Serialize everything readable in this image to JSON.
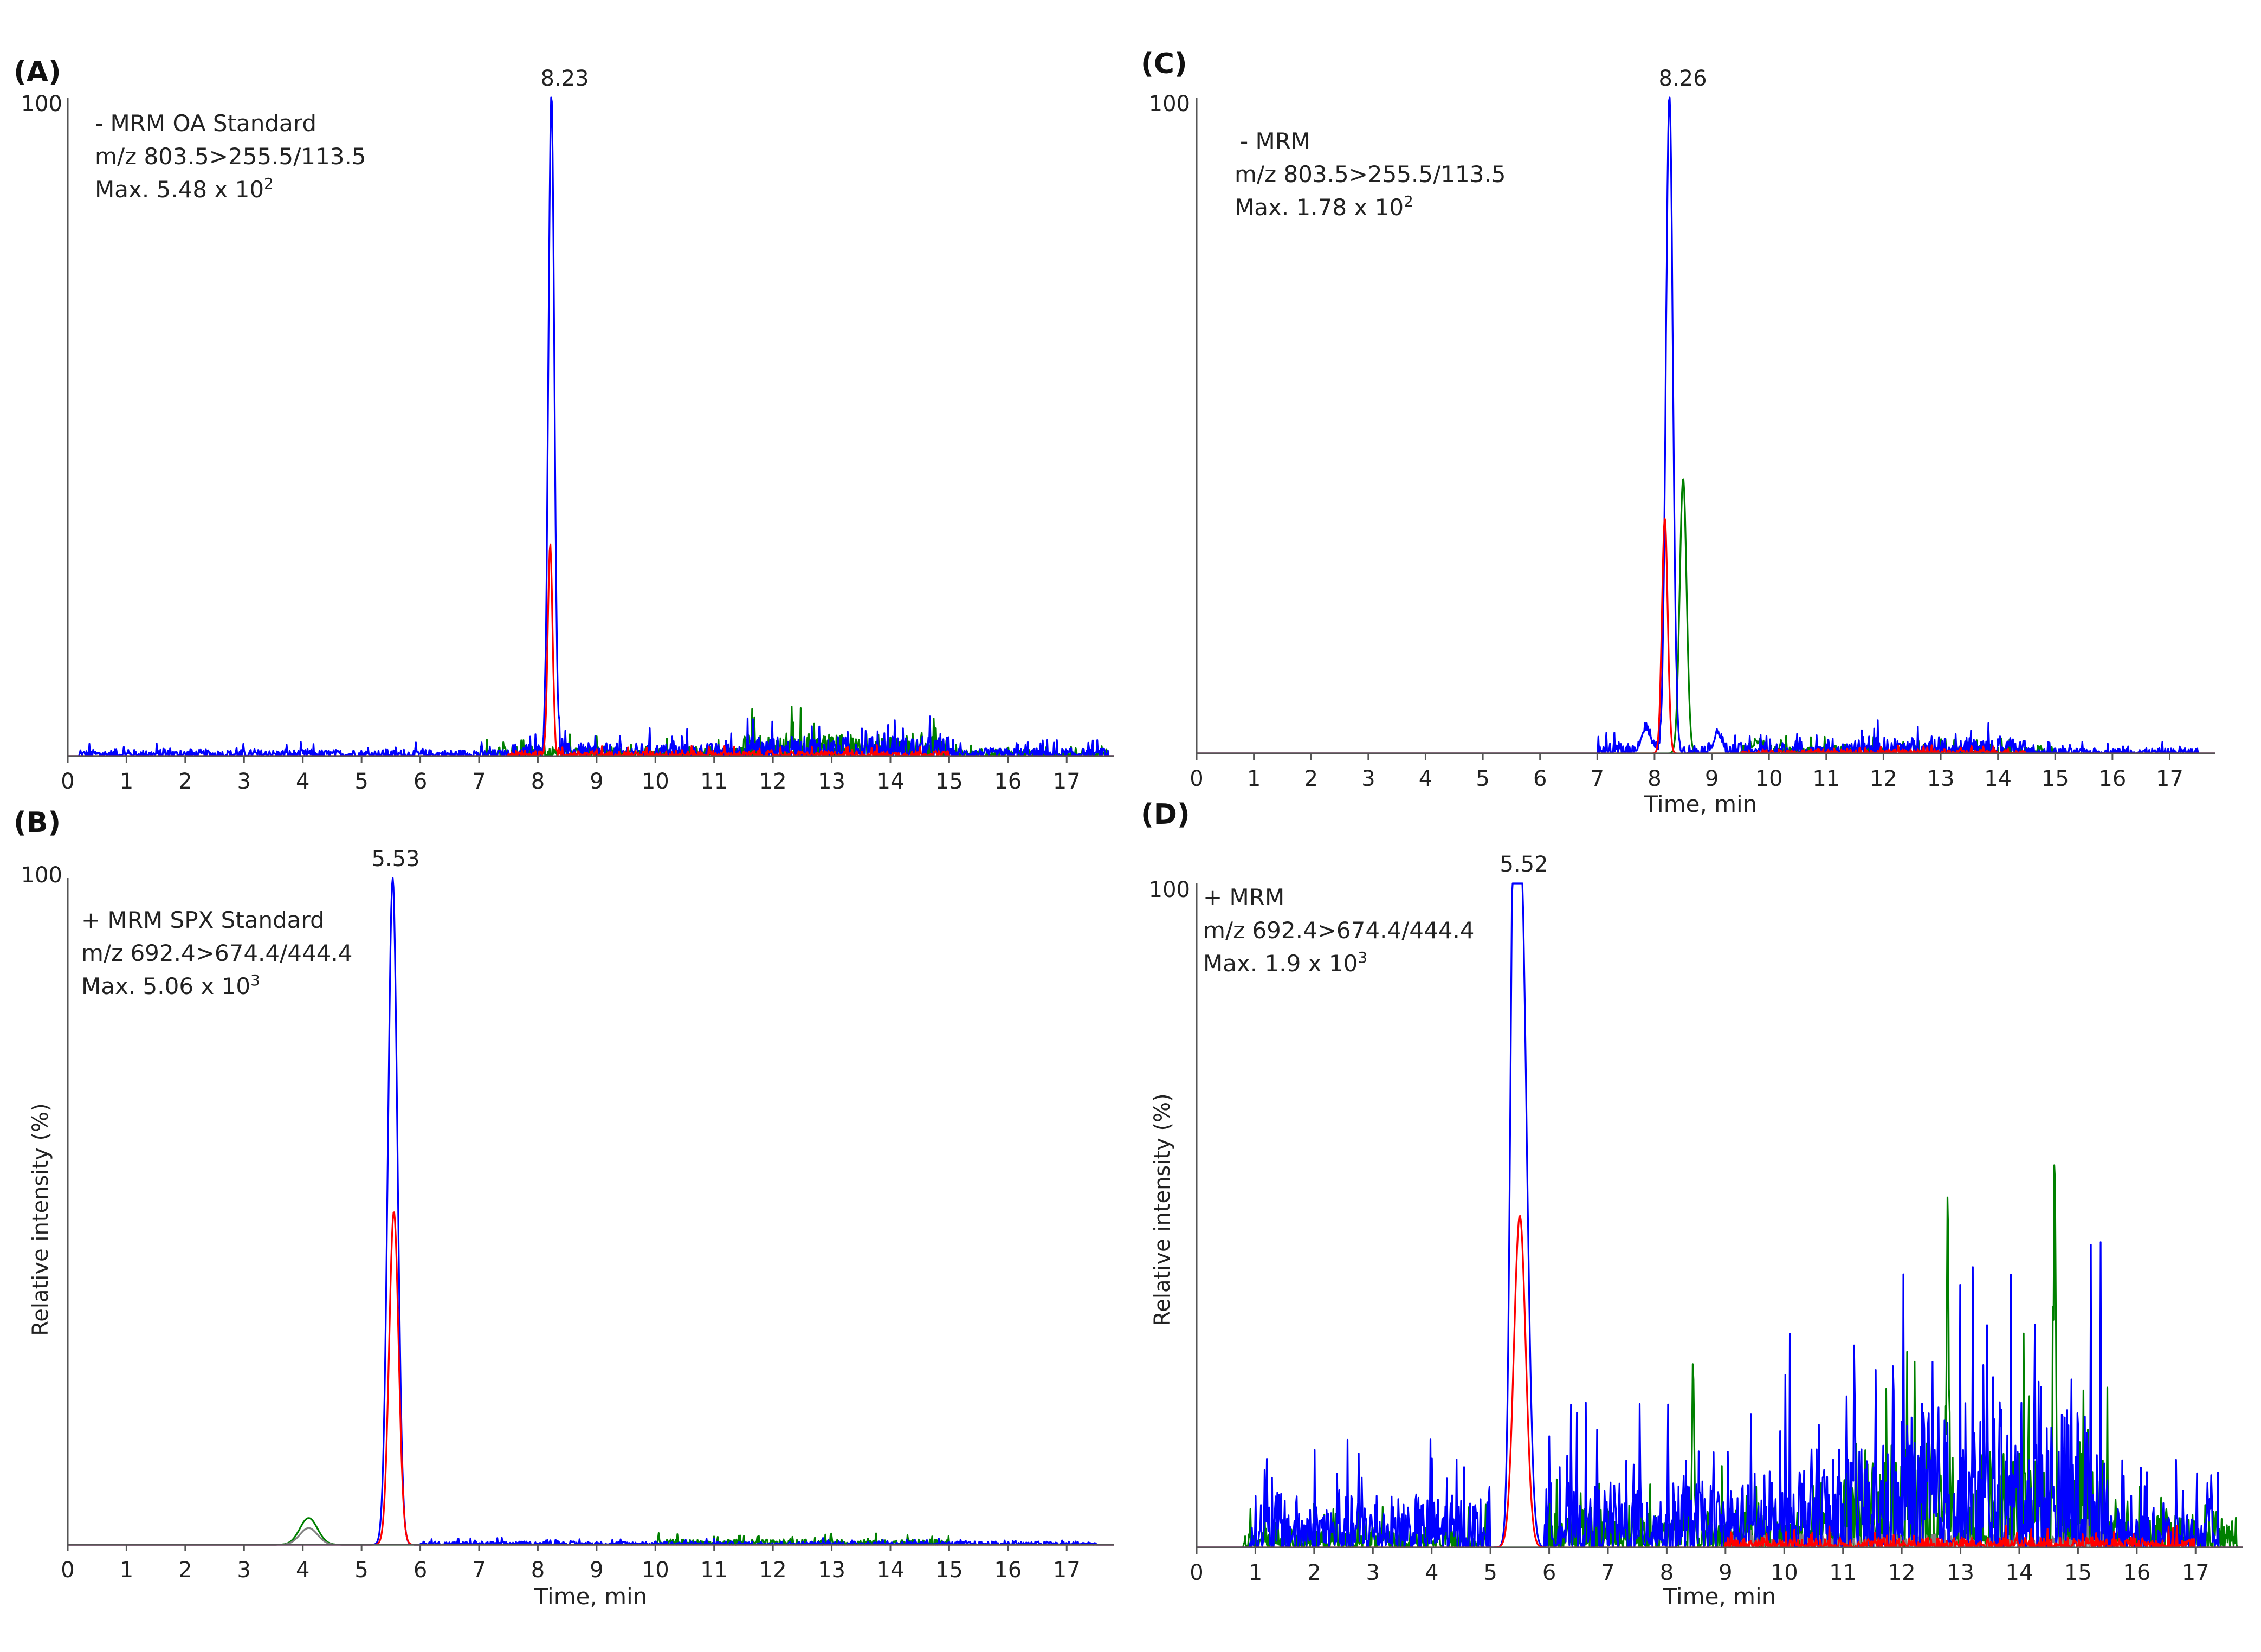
{
  "chart_data": [
    {
      "panel": "(A)",
      "type": "line",
      "annotation": [
        "- MRM OA Standard",
        "m/z 803.5>255.5/113.5",
        "Max. 5.48 x 10"
      ],
      "max_exponent": "2",
      "y_top_label": "100",
      "peak_label": "8.23",
      "peak_rt": 8.23,
      "xlabel": "",
      "ylabel": "",
      "xlim": [
        0,
        17.8
      ],
      "ylim": [
        0,
        100
      ],
      "x_ticks": [
        "0",
        "1",
        "2",
        "3",
        "4",
        "5",
        "6",
        "7",
        "8",
        "9",
        "10",
        "11",
        "12",
        "13",
        "14",
        "15",
        "16",
        "17"
      ],
      "series": [
        {
          "color": "#0000ff",
          "peaks": [
            [
              8.23,
              100,
              0.05
            ]
          ],
          "noise": [
            [
              0.2,
              7.5,
              1.0
            ],
            [
              7.5,
              11.5,
              2.0
            ],
            [
              11.5,
              15.0,
              3.0
            ],
            [
              15.0,
              17.7,
              1.2
            ]
          ]
        },
        {
          "color": "#ff0000",
          "peaks": [
            [
              8.21,
              32,
              0.04
            ]
          ],
          "noise": [
            [
              7.5,
              15.0,
              0.8
            ]
          ]
        },
        {
          "color": "#008000",
          "peaks": [],
          "noise": [
            [
              7.0,
              11.5,
              1.5
            ],
            [
              11.5,
              15.0,
              3.5
            ],
            [
              15.0,
              17.7,
              1.0
            ]
          ]
        }
      ]
    },
    {
      "panel": "(B)",
      "type": "line",
      "annotation": [
        "+ MRM SPX Standard",
        "m/z 692.4>674.4/444.4",
        "Max. 5.06 x 10"
      ],
      "max_exponent": "3",
      "y_top_label": "100",
      "peak_label": "5.53",
      "peak_rt": 5.53,
      "xlabel": "Time, min",
      "ylabel": "Relative intensity (%)",
      "xlim": [
        0,
        17.8
      ],
      "ylim": [
        0,
        100
      ],
      "x_ticks": [
        "0",
        "1",
        "2",
        "3",
        "4",
        "5",
        "6",
        "7",
        "8",
        "9",
        "10",
        "11",
        "12",
        "13",
        "14",
        "15",
        "16",
        "17"
      ],
      "series": [
        {
          "color": "#0000ff",
          "peaks": [
            [
              5.53,
              100,
              0.08
            ]
          ],
          "noise": [
            [
              6.0,
              17.5,
              0.5
            ]
          ]
        },
        {
          "color": "#ff0000",
          "peaks": [
            [
              5.55,
              50,
              0.08
            ]
          ],
          "noise": []
        },
        {
          "color": "#008000",
          "peaks": [
            [
              4.1,
              4,
              0.15
            ]
          ],
          "noise": [
            [
              10.0,
              15.0,
              0.8
            ]
          ]
        },
        {
          "color": "#808080",
          "peaks": [
            [
              4.1,
              2.5,
              0.15
            ]
          ],
          "noise": []
        }
      ]
    },
    {
      "panel": "(C)",
      "type": "line",
      "annotation": [
        "- MRM",
        "m/z 803.5>255.5/113.5",
        "Max. 1.78 x 10"
      ],
      "max_exponent": "2",
      "y_top_label": "100",
      "peak_label": "8.26",
      "peak_rt": 8.26,
      "xlabel": "Time, min",
      "ylabel": "",
      "xlim": [
        0,
        17.8
      ],
      "ylim": [
        0,
        100
      ],
      "x_ticks": [
        "0",
        "1",
        "2",
        "3",
        "4",
        "5",
        "6",
        "7",
        "8",
        "9",
        "10",
        "11",
        "12",
        "13",
        "14",
        "15",
        "16",
        "17"
      ],
      "series": [
        {
          "color": "#0000ff",
          "peaks": [
            [
              8.26,
              100,
              0.06
            ],
            [
              7.85,
              3.5,
              0.08
            ],
            [
              9.1,
              3,
              0.06
            ]
          ],
          "noise": [
            [
              7.0,
              9.5,
              1.5
            ],
            [
              9.5,
              11.5,
              1.5
            ],
            [
              11.5,
              14.5,
              2.5
            ],
            [
              14.5,
              17.5,
              0.8
            ]
          ]
        },
        {
          "color": "#ff0000",
          "peaks": [
            [
              8.18,
              36,
              0.05
            ]
          ],
          "noise": [
            [
              9.5,
              14.5,
              0.6
            ]
          ]
        },
        {
          "color": "#008000",
          "peaks": [
            [
              8.5,
              42,
              0.06
            ],
            [
              9.8,
              1.5,
              0.1
            ]
          ],
          "noise": [
            [
              9.5,
              15.0,
              1.2
            ]
          ]
        }
      ]
    },
    {
      "panel": "(D)",
      "type": "line",
      "annotation": [
        "+ MRM",
        "m/z 692.4>674.4/444.4",
        "Max. 1.9 x 10"
      ],
      "max_exponent": "3",
      "y_top_label": "100",
      "peak_label": "5.52",
      "peak_rt": 5.52,
      "xlabel": "Time, min",
      "ylabel": "Relative intensity (%)",
      "xlim": [
        0,
        17.8
      ],
      "ylim": [
        0,
        100
      ],
      "x_ticks": [
        "0",
        "1",
        "2",
        "3",
        "4",
        "5",
        "6",
        "7",
        "8",
        "9",
        "10",
        "11",
        "12",
        "13",
        "14",
        "15",
        "16",
        "17"
      ],
      "series": [
        {
          "color": "#0000ff",
          "peaks": [
            [
              5.52,
              100,
              0.1
            ],
            [
              5.4,
              80,
              0.06
            ]
          ],
          "noise": [
            [
              0.9,
              5.0,
              8.0
            ],
            [
              5.9,
              10.0,
              10.0
            ],
            [
              10.0,
              12.0,
              15.0
            ],
            [
              12.0,
              15.5,
              22.0
            ],
            [
              15.5,
              17.4,
              6.0
            ]
          ]
        },
        {
          "color": "#ff0000",
          "peaks": [
            [
              5.5,
              50,
              0.1
            ]
          ],
          "noise": [
            [
              9.0,
              17.0,
              1.5
            ]
          ]
        },
        {
          "color": "#008000",
          "peaks": [
            [
              8.45,
              24,
              0.02
            ],
            [
              12.78,
              44,
              0.02
            ],
            [
              14.6,
              44,
              0.02
            ]
          ],
          "noise": [
            [
              0.8,
              5.0,
              3.0
            ],
            [
              6.0,
              11.0,
              6.0
            ],
            [
              11.0,
              15.5,
              16.0
            ],
            [
              15.5,
              17.7,
              5.0
            ]
          ]
        },
        {
          "color": "#808080",
          "peaks": [],
          "noise": [
            [
              9.0,
              15.5,
              2.0
            ]
          ]
        }
      ]
    }
  ]
}
